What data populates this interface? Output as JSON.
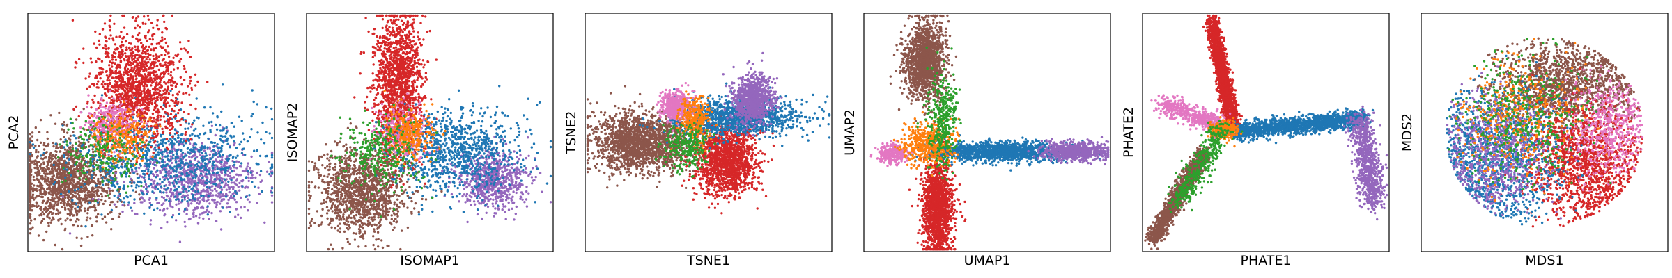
{
  "chart_data": [
    {
      "type": "scatter",
      "xlabel": "PCA1",
      "ylabel": "PCA2",
      "grid": false,
      "ticks": false,
      "legend": "none",
      "clusters": [
        {
          "color": "#8c564b",
          "n": 1400,
          "cx": 0.16,
          "cy": 0.3,
          "sx": 0.1,
          "sy": 0.09
        },
        {
          "color": "#9467bd",
          "n": 900,
          "cx": 0.68,
          "cy": 0.3,
          "sx": 0.13,
          "sy": 0.08
        },
        {
          "color": "#1f77b4",
          "n": 900,
          "cx": 0.55,
          "cy": 0.4,
          "sx": 0.19,
          "sy": 0.1
        },
        {
          "color": "#d62728",
          "n": 1400,
          "cx": 0.45,
          "cy": 0.7,
          "sx": 0.09,
          "sy": 0.11
        },
        {
          "color": "#e377c2",
          "n": 300,
          "cx": 0.34,
          "cy": 0.53,
          "sx": 0.05,
          "sy": 0.05
        },
        {
          "color": "#ff7f0e",
          "n": 250,
          "cx": 0.38,
          "cy": 0.48,
          "sx": 0.06,
          "sy": 0.05
        },
        {
          "color": "#2ca02c",
          "n": 200,
          "cx": 0.3,
          "cy": 0.42,
          "sx": 0.08,
          "sy": 0.07
        }
      ]
    },
    {
      "type": "scatter",
      "xlabel": "ISOMAP1",
      "ylabel": "ISOMAP2",
      "grid": false,
      "ticks": false,
      "legend": "none",
      "clusters": [
        {
          "color": "#8c564b",
          "n": 1300,
          "cx": 0.22,
          "cy": 0.25,
          "sx": 0.09,
          "sy": 0.09
        },
        {
          "color": "#d62728",
          "n": 1500,
          "cx": 0.37,
          "cy": 0.7,
          "sx": 0.05,
          "sy": 0.15
        },
        {
          "color": "#9467bd",
          "n": 700,
          "cx": 0.75,
          "cy": 0.3,
          "sx": 0.07,
          "sy": 0.06
        },
        {
          "color": "#1f77b4",
          "n": 900,
          "cx": 0.6,
          "cy": 0.42,
          "sx": 0.13,
          "sy": 0.09
        },
        {
          "color": "#e377c2",
          "n": 250,
          "cx": 0.38,
          "cy": 0.5,
          "sx": 0.05,
          "sy": 0.06
        },
        {
          "color": "#ff7f0e",
          "n": 300,
          "cx": 0.42,
          "cy": 0.5,
          "sx": 0.05,
          "sy": 0.05
        },
        {
          "color": "#2ca02c",
          "n": 300,
          "cx": 0.3,
          "cy": 0.4,
          "sx": 0.08,
          "sy": 0.08
        }
      ]
    },
    {
      "type": "scatter",
      "xlabel": "TSNE1",
      "ylabel": "TSNE2",
      "grid": false,
      "ticks": false,
      "legend": "none",
      "clusters": [
        {
          "color": "#8c564b",
          "n": 1800,
          "cx": 0.23,
          "cy": 0.46,
          "sx": 0.1,
          "sy": 0.06
        },
        {
          "color": "#d62728",
          "n": 1500,
          "cx": 0.57,
          "cy": 0.38,
          "sx": 0.06,
          "sy": 0.07
        },
        {
          "color": "#1f77b4",
          "n": 1200,
          "cx": 0.61,
          "cy": 0.56,
          "sx": 0.13,
          "sy": 0.04
        },
        {
          "color": "#9467bd",
          "n": 900,
          "cx": 0.68,
          "cy": 0.64,
          "sx": 0.04,
          "sy": 0.05
        },
        {
          "color": "#e377c2",
          "n": 500,
          "cx": 0.37,
          "cy": 0.61,
          "sx": 0.03,
          "sy": 0.03
        },
        {
          "color": "#ff7f0e",
          "n": 300,
          "cx": 0.44,
          "cy": 0.55,
          "sx": 0.03,
          "sy": 0.05
        },
        {
          "color": "#2ca02c",
          "n": 250,
          "cx": 0.41,
          "cy": 0.44,
          "sx": 0.05,
          "sy": 0.05
        }
      ]
    },
    {
      "type": "scatter",
      "xlabel": "UMAP1",
      "ylabel": "UMAP2",
      "grid": false,
      "ticks": false,
      "legend": "none",
      "clusters": [
        {
          "color": "#8c564b",
          "n": 1500,
          "cx": 0.25,
          "cy": 0.8,
          "sx": 0.04,
          "sy": 0.08
        },
        {
          "color": "#d62728",
          "n": 1500,
          "cx": 0.3,
          "cy": 0.18,
          "sx": 0.03,
          "sy": 0.1
        },
        {
          "color": "#1f77b4",
          "n": 1400,
          "cx": 0.55,
          "cy": 0.42,
          "sx": 0.13,
          "sy": 0.02
        },
        {
          "color": "#9467bd",
          "n": 700,
          "cx": 0.86,
          "cy": 0.42,
          "sx": 0.07,
          "sy": 0.02
        },
        {
          "color": "#e377c2",
          "n": 300,
          "cx": 0.12,
          "cy": 0.41,
          "sx": 0.03,
          "sy": 0.02
        },
        {
          "color": "#ff7f0e",
          "n": 500,
          "cx": 0.26,
          "cy": 0.45,
          "sx": 0.05,
          "sy": 0.04
        },
        {
          "color": "#2ca02c",
          "n": 350,
          "cx": 0.32,
          "cy": 0.55,
          "sx": 0.03,
          "sy": 0.1
        }
      ]
    },
    {
      "type": "scatter",
      "xlabel": "PHATE1",
      "ylabel": "PHATE2",
      "grid": false,
      "ticks": false,
      "legend": "none",
      "arms": [
        {
          "color": "#d62728",
          "n": 1700,
          "x0": 0.28,
          "y0": 0.97,
          "x1": 0.37,
          "y1": 0.52,
          "spread": 0.014
        },
        {
          "color": "#8c564b",
          "n": 1300,
          "x0": 0.04,
          "y0": 0.05,
          "x1": 0.25,
          "y1": 0.42,
          "spread": 0.016
        },
        {
          "color": "#1f77b4",
          "n": 1700,
          "x0": 0.36,
          "y0": 0.5,
          "x1": 0.9,
          "y1": 0.56,
          "spread": 0.018
        },
        {
          "color": "#9467bd",
          "n": 800,
          "x0": 0.88,
          "y0": 0.56,
          "x1": 0.94,
          "y1": 0.2,
          "spread": 0.025
        },
        {
          "color": "#e377c2",
          "n": 500,
          "x0": 0.08,
          "y0": 0.62,
          "x1": 0.32,
          "y1": 0.53,
          "spread": 0.02
        },
        {
          "color": "#ff7f0e",
          "n": 300,
          "x0": 0.3,
          "y0": 0.5,
          "x1": 0.36,
          "y1": 0.52,
          "spread": 0.02
        },
        {
          "color": "#2ca02c",
          "n": 400,
          "x0": 0.14,
          "y0": 0.2,
          "x1": 0.33,
          "y1": 0.52,
          "spread": 0.025
        }
      ]
    },
    {
      "type": "scatter",
      "xlabel": "MDS1",
      "ylabel": "MDS2",
      "grid": false,
      "ticks": false,
      "legend": "none",
      "disc": {
        "cx": 0.5,
        "cy": 0.5,
        "r": 0.4
      },
      "clusters": [
        {
          "color": "#8c564b",
          "n": 1400,
          "cx": 0.58,
          "cy": 0.7,
          "sx": 0.14,
          "sy": 0.09
        },
        {
          "color": "#d62728",
          "n": 1400,
          "cx": 0.66,
          "cy": 0.38,
          "sx": 0.11,
          "sy": 0.12
        },
        {
          "color": "#1f77b4",
          "n": 1100,
          "cx": 0.3,
          "cy": 0.4,
          "sx": 0.13,
          "sy": 0.14
        },
        {
          "color": "#9467bd",
          "n": 800,
          "cx": 0.3,
          "cy": 0.42,
          "sx": 0.11,
          "sy": 0.12
        },
        {
          "color": "#e377c2",
          "n": 500,
          "cx": 0.76,
          "cy": 0.52,
          "sx": 0.08,
          "sy": 0.1
        },
        {
          "color": "#ff7f0e",
          "n": 400,
          "cx": 0.4,
          "cy": 0.58,
          "sx": 0.13,
          "sy": 0.13
        },
        {
          "color": "#2ca02c",
          "n": 400,
          "cx": 0.42,
          "cy": 0.55,
          "sx": 0.13,
          "sy": 0.13
        }
      ]
    }
  ]
}
